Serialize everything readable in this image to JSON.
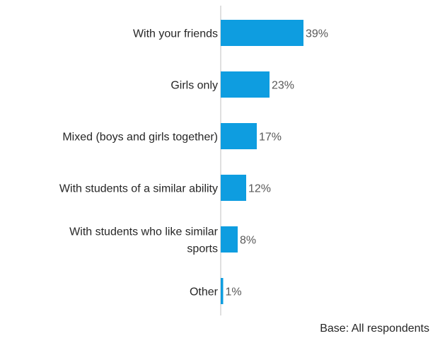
{
  "chart_data": {
    "type": "bar",
    "orientation": "horizontal",
    "categories": [
      "With your friends",
      "Girls only",
      "Mixed (boys and girls together)",
      "With students of a similar ability",
      "With students who like similar sports",
      "Other"
    ],
    "category_lines": [
      [
        "With your friends"
      ],
      [
        "Girls only"
      ],
      [
        "Mixed (boys and girls together)"
      ],
      [
        "With students of a similar ability"
      ],
      [
        "With students who like similar",
        "sports"
      ],
      [
        "Other"
      ]
    ],
    "values": [
      39,
      23,
      17,
      12,
      8,
      1
    ],
    "value_labels": [
      "39%",
      "23%",
      "17%",
      "12%",
      "8%",
      "1%"
    ],
    "unit": "%",
    "xlim": [
      0,
      100
    ],
    "grid": false,
    "legend": "none",
    "bar_color": "#0E9DE0",
    "axis_color": "#BFBFBF"
  },
  "footnote": "Base: All respondents"
}
